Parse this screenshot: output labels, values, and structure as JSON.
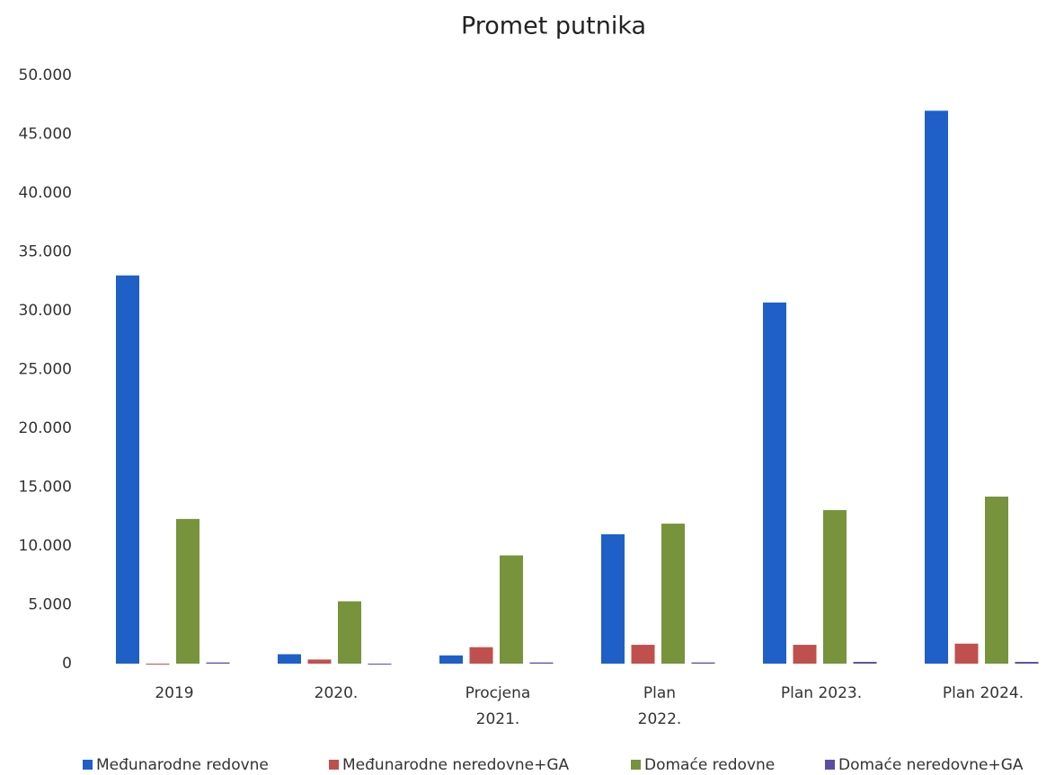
{
  "chart_data": {
    "type": "bar",
    "title": "Promet putnika",
    "categories": [
      [
        "2019"
      ],
      [
        "2020."
      ],
      [
        "Procjena",
        "2021."
      ],
      [
        "Plan",
        "2022."
      ],
      [
        "Plan 2023."
      ],
      [
        "Plan 2024."
      ]
    ],
    "series": [
      {
        "name": "Međunarodne redovne",
        "color": "#1f5fc8",
        "values": [
          33000,
          800,
          700,
          11000,
          30700,
          47000
        ]
      },
      {
        "name": "Međunarodne neredovne+GA",
        "color": "#c0504d",
        "values": [
          0,
          350,
          1400,
          1600,
          1600,
          1700
        ]
      },
      {
        "name": "Domaće redovne",
        "color": "#77933c",
        "values": [
          12300,
          5300,
          9200,
          11900,
          13050,
          14200
        ]
      },
      {
        "name": "Domaće neredovne+GA",
        "color": "#5b4ea3",
        "values": [
          100,
          0,
          100,
          100,
          150,
          150
        ]
      }
    ],
    "ylim": [
      0,
      50000
    ],
    "yticks": [
      0,
      {
        "value": 5000,
        "label": "5.000"
      },
      {
        "value": 10000,
        "label": "10.000"
      },
      {
        "value": 15000,
        "label": "15.000"
      },
      {
        "value": 20000,
        "label": "20.000"
      },
      {
        "value": 25000,
        "label": "25.000"
      },
      {
        "value": 30000,
        "label": "30.000"
      },
      {
        "value": 35000,
        "label": "35.000"
      },
      {
        "value": 40000,
        "label": "40.000"
      },
      {
        "value": 45000,
        "label": "45.000"
      },
      {
        "value": 50000,
        "label": "50.000"
      }
    ],
    "grid": false,
    "legend": "bottom"
  }
}
